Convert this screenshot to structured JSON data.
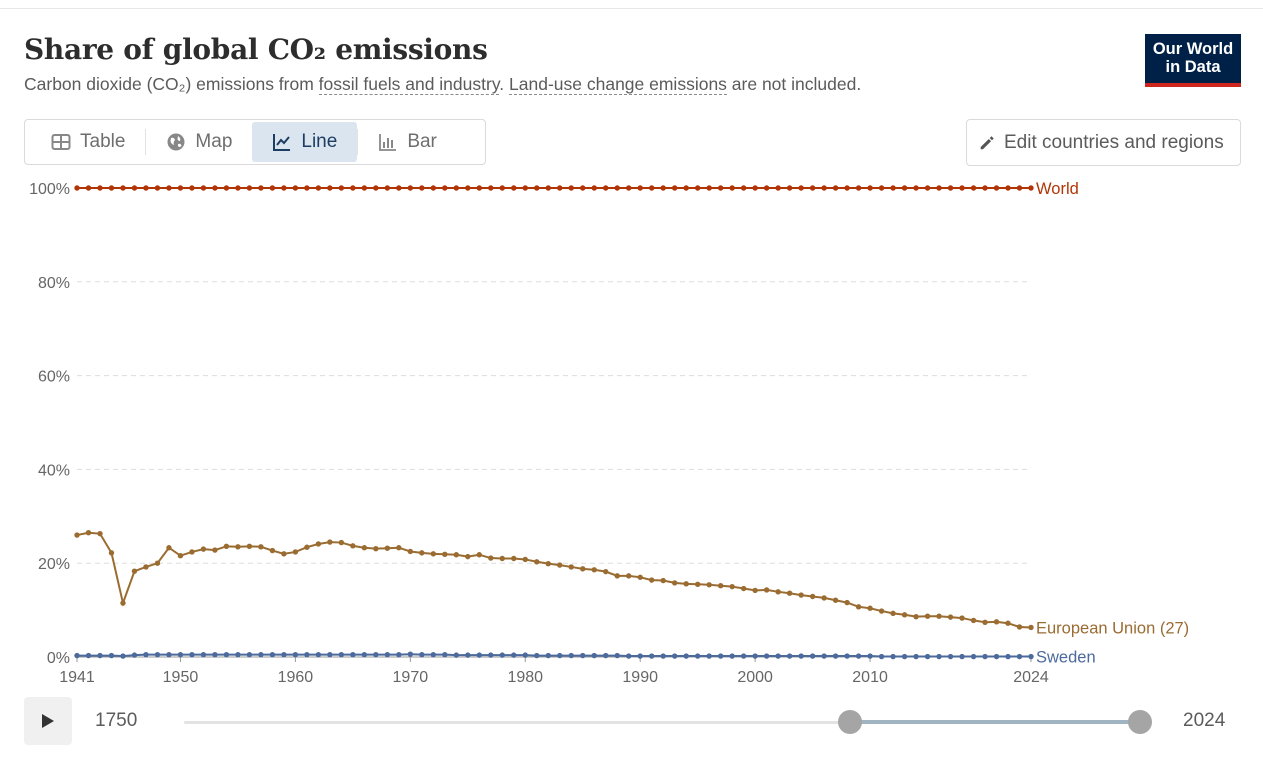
{
  "header": {
    "title": "Share of global CO₂ emissions",
    "subtitle_pre": "Carbon dioxide (CO₂) emissions from ",
    "subtitle_link1": "fossil fuels and industry",
    "subtitle_mid": ". ",
    "subtitle_link2": "Land-use change emissions",
    "subtitle_post": " are not included."
  },
  "logo": {
    "line1": "Our World",
    "line2": "in Data",
    "bg_color": "#002147",
    "accent_color": "#ce261e"
  },
  "tabs": [
    {
      "label": "Table",
      "icon": "table-icon",
      "active": false
    },
    {
      "label": "Map",
      "icon": "globe-icon",
      "active": false
    },
    {
      "label": "Line",
      "icon": "line-chart-icon",
      "active": true
    },
    {
      "label": "Bar",
      "icon": "bar-chart-icon",
      "active": false
    }
  ],
  "edit_button": {
    "label": "Edit countries and regions",
    "icon": "pencil-icon"
  },
  "timeline": {
    "start_label": "1750",
    "end_label": "2024",
    "selected_start": 1941,
    "selected_end": 2024
  },
  "chart_data": {
    "type": "line",
    "title": "Share of global CO₂ emissions",
    "xlabel": "",
    "ylabel": "",
    "xlim": [
      1941,
      2024
    ],
    "ylim": [
      0,
      100
    ],
    "x_ticks": [
      1941,
      1950,
      1960,
      1970,
      1980,
      1990,
      2000,
      2010,
      2024
    ],
    "y_ticks": [
      "0%",
      "20%",
      "40%",
      "60%",
      "80%",
      "100%"
    ],
    "y_tick_values": [
      0,
      20,
      40,
      60,
      80,
      100
    ],
    "grid": "horizontal dashed",
    "legend": "labels at line ends",
    "series": [
      {
        "name": "World",
        "color": "#b13507",
        "x": [
          1941,
          1942,
          1943,
          1944,
          1945,
          1946,
          1947,
          1948,
          1949,
          1950,
          1951,
          1952,
          1953,
          1954,
          1955,
          1956,
          1957,
          1958,
          1959,
          1960,
          1961,
          1962,
          1963,
          1964,
          1965,
          1966,
          1967,
          1968,
          1969,
          1970,
          1971,
          1972,
          1973,
          1974,
          1975,
          1976,
          1977,
          1978,
          1979,
          1980,
          1981,
          1982,
          1983,
          1984,
          1985,
          1986,
          1987,
          1988,
          1989,
          1990,
          1991,
          1992,
          1993,
          1994,
          1995,
          1996,
          1997,
          1998,
          1999,
          2000,
          2001,
          2002,
          2003,
          2004,
          2005,
          2006,
          2007,
          2008,
          2009,
          2010,
          2011,
          2012,
          2013,
          2014,
          2015,
          2016,
          2017,
          2018,
          2019,
          2020,
          2021,
          2022,
          2023,
          2024
        ],
        "values": [
          100,
          100,
          100,
          100,
          100,
          100,
          100,
          100,
          100,
          100,
          100,
          100,
          100,
          100,
          100,
          100,
          100,
          100,
          100,
          100,
          100,
          100,
          100,
          100,
          100,
          100,
          100,
          100,
          100,
          100,
          100,
          100,
          100,
          100,
          100,
          100,
          100,
          100,
          100,
          100,
          100,
          100,
          100,
          100,
          100,
          100,
          100,
          100,
          100,
          100,
          100,
          100,
          100,
          100,
          100,
          100,
          100,
          100,
          100,
          100,
          100,
          100,
          100,
          100,
          100,
          100,
          100,
          100,
          100,
          100,
          100,
          100,
          100,
          100,
          100,
          100,
          100,
          100,
          100,
          100,
          100,
          100,
          100,
          100
        ]
      },
      {
        "name": "European Union (27)",
        "color": "#9a6c31",
        "x": [
          1941,
          1942,
          1943,
          1944,
          1945,
          1946,
          1947,
          1948,
          1949,
          1950,
          1951,
          1952,
          1953,
          1954,
          1955,
          1956,
          1957,
          1958,
          1959,
          1960,
          1961,
          1962,
          1963,
          1964,
          1965,
          1966,
          1967,
          1968,
          1969,
          1970,
          1971,
          1972,
          1973,
          1974,
          1975,
          1976,
          1977,
          1978,
          1979,
          1980,
          1981,
          1982,
          1983,
          1984,
          1985,
          1986,
          1987,
          1988,
          1989,
          1990,
          1991,
          1992,
          1993,
          1994,
          1995,
          1996,
          1997,
          1998,
          1999,
          2000,
          2001,
          2002,
          2003,
          2004,
          2005,
          2006,
          2007,
          2008,
          2009,
          2010,
          2011,
          2012,
          2013,
          2014,
          2015,
          2016,
          2017,
          2018,
          2019,
          2020,
          2021,
          2022,
          2023,
          2024
        ],
        "values": [
          26.0,
          26.5,
          26.3,
          22.2,
          11.5,
          18.3,
          19.2,
          20.0,
          23.3,
          21.6,
          22.4,
          23.0,
          22.8,
          23.6,
          23.5,
          23.6,
          23.5,
          22.7,
          22.0,
          22.4,
          23.4,
          24.1,
          24.5,
          24.4,
          23.7,
          23.3,
          23.1,
          23.2,
          23.3,
          22.5,
          22.2,
          22.0,
          21.9,
          21.8,
          21.4,
          21.8,
          21.1,
          21.0,
          21.0,
          20.8,
          20.3,
          19.9,
          19.6,
          19.2,
          18.8,
          18.6,
          18.2,
          17.3,
          17.3,
          17.0,
          16.4,
          16.3,
          15.8,
          15.6,
          15.5,
          15.4,
          15.2,
          15.0,
          14.6,
          14.2,
          14.3,
          13.9,
          13.6,
          13.2,
          12.9,
          12.6,
          12.1,
          11.6,
          10.7,
          10.4,
          9.8,
          9.3,
          9.0,
          8.6,
          8.7,
          8.7,
          8.5,
          8.3,
          7.8,
          7.4,
          7.5,
          7.2,
          6.4,
          6.3
        ]
      },
      {
        "name": "Sweden",
        "color": "#4c6a9c",
        "x": [
          1941,
          1942,
          1943,
          1944,
          1945,
          1946,
          1947,
          1948,
          1949,
          1950,
          1951,
          1952,
          1953,
          1954,
          1955,
          1956,
          1957,
          1958,
          1959,
          1960,
          1961,
          1962,
          1963,
          1964,
          1965,
          1966,
          1967,
          1968,
          1969,
          1970,
          1971,
          1972,
          1973,
          1974,
          1975,
          1976,
          1977,
          1978,
          1979,
          1980,
          1981,
          1982,
          1983,
          1984,
          1985,
          1986,
          1987,
          1988,
          1989,
          1990,
          1991,
          1992,
          1993,
          1994,
          1995,
          1996,
          1997,
          1998,
          1999,
          2000,
          2001,
          2002,
          2003,
          2004,
          2005,
          2006,
          2007,
          2008,
          2009,
          2010,
          2011,
          2012,
          2013,
          2014,
          2015,
          2016,
          2017,
          2018,
          2019,
          2020,
          2021,
          2022,
          2023,
          2024
        ],
        "values": [
          0.3,
          0.3,
          0.3,
          0.3,
          0.2,
          0.4,
          0.5,
          0.5,
          0.5,
          0.5,
          0.5,
          0.5,
          0.5,
          0.5,
          0.5,
          0.5,
          0.5,
          0.5,
          0.5,
          0.5,
          0.5,
          0.5,
          0.5,
          0.5,
          0.5,
          0.5,
          0.5,
          0.5,
          0.5,
          0.6,
          0.5,
          0.5,
          0.5,
          0.4,
          0.4,
          0.4,
          0.4,
          0.4,
          0.4,
          0.4,
          0.3,
          0.3,
          0.3,
          0.3,
          0.3,
          0.3,
          0.3,
          0.3,
          0.2,
          0.2,
          0.2,
          0.2,
          0.2,
          0.2,
          0.2,
          0.2,
          0.2,
          0.2,
          0.2,
          0.2,
          0.2,
          0.2,
          0.2,
          0.2,
          0.2,
          0.2,
          0.2,
          0.2,
          0.2,
          0.2,
          0.1,
          0.1,
          0.1,
          0.1,
          0.1,
          0.1,
          0.1,
          0.1,
          0.1,
          0.1,
          0.1,
          0.1,
          0.1,
          0.1
        ]
      }
    ]
  }
}
